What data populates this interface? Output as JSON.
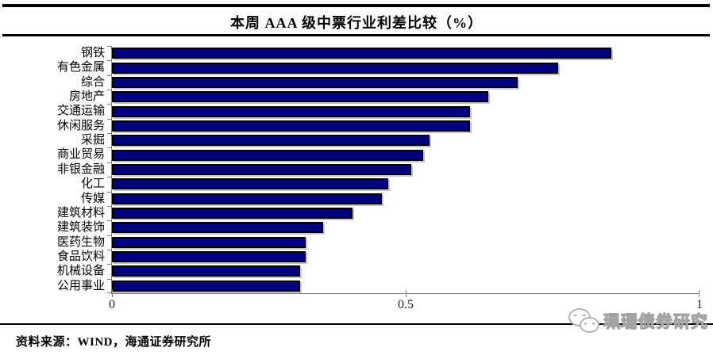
{
  "header": {
    "title": "本周 AAA 级中票行业利差比较（%）"
  },
  "chart_data": {
    "type": "bar",
    "orientation": "horizontal",
    "title": "本周 AAA 级中票行业利差比较（%）",
    "categories": [
      "钢铁",
      "有色金属",
      "综合",
      "房地产",
      "交通运输",
      "休闲服务",
      "采掘",
      "商业贸易",
      "非银金融",
      "化工",
      "传媒",
      "建筑材料",
      "建筑装饰",
      "医药生物",
      "食品饮料",
      "机械设备",
      "公用事业"
    ],
    "values": [
      0.85,
      0.76,
      0.69,
      0.64,
      0.61,
      0.61,
      0.54,
      0.53,
      0.51,
      0.47,
      0.46,
      0.41,
      0.36,
      0.33,
      0.33,
      0.32,
      0.32
    ],
    "xlabel": "",
    "ylabel": "",
    "xlim": [
      0,
      1
    ],
    "xticks": [
      0,
      0.5,
      1
    ],
    "xtick_labels": [
      "0",
      "0.5",
      "1"
    ],
    "grid": false,
    "legend": false,
    "bar_color": "#000080",
    "bar_border_color": "#000000",
    "axis_color": "#7f7f7f"
  },
  "footer": {
    "source_label": "资料来源：WIND，海通证券研究所"
  },
  "watermark": {
    "text": "珮珊债券研究",
    "logo": "chat-bubbles-logo"
  }
}
